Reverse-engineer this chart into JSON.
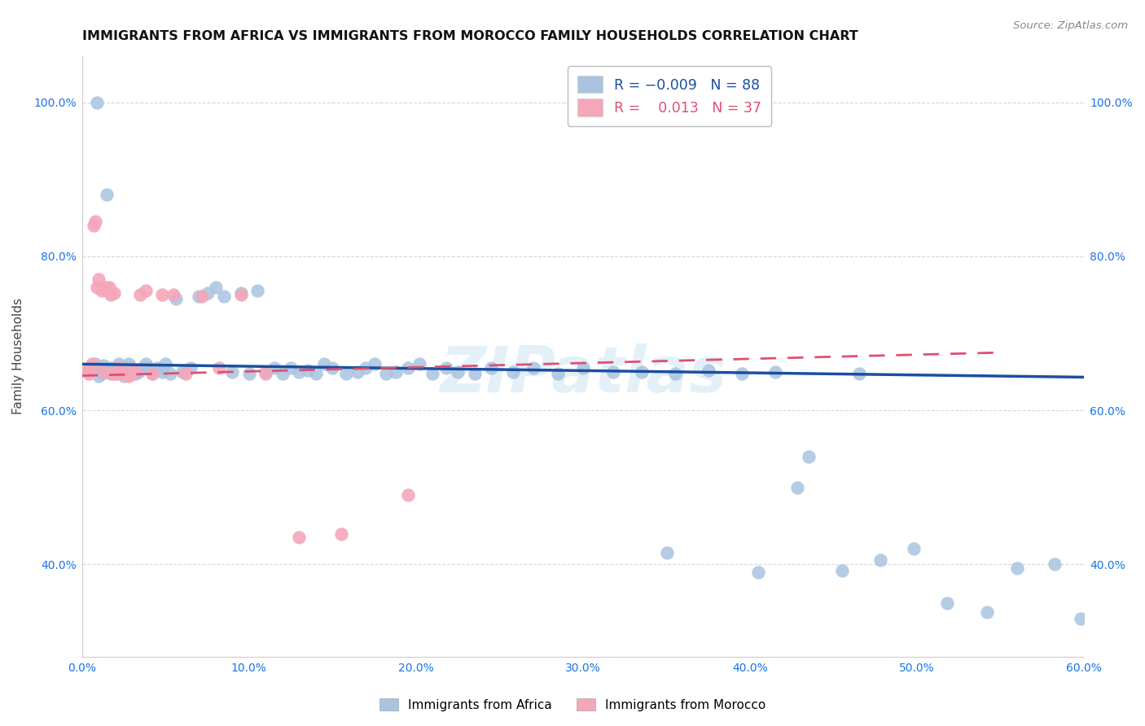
{
  "title": "IMMIGRANTS FROM AFRICA VS IMMIGRANTS FROM MOROCCO FAMILY HOUSEHOLDS CORRELATION CHART",
  "source": "Source: ZipAtlas.com",
  "ylabel": "Family Households",
  "xlim": [
    0.0,
    0.6
  ],
  "ylim": [
    0.28,
    1.06
  ],
  "xtick_labels": [
    "0.0%",
    "10.0%",
    "20.0%",
    "30.0%",
    "40.0%",
    "50.0%",
    "60.0%"
  ],
  "xtick_values": [
    0.0,
    0.1,
    0.2,
    0.3,
    0.4,
    0.5,
    0.6
  ],
  "ytick_labels": [
    "40.0%",
    "60.0%",
    "80.0%",
    "100.0%"
  ],
  "ytick_values": [
    0.4,
    0.6,
    0.8,
    1.0
  ],
  "blue_color": "#a8c4e0",
  "pink_color": "#f4a7b9",
  "trendline_blue_color": "#1a4fa0",
  "trendline_pink_color": "#e05070",
  "legend_r_blue": "-0.009",
  "legend_n_blue": "88",
  "legend_r_pink": "0.013",
  "legend_n_pink": "37",
  "watermark": "ZIPatlas",
  "blue_x": [
    0.006,
    0.008,
    0.009,
    0.01,
    0.011,
    0.012,
    0.013,
    0.014,
    0.015,
    0.016,
    0.017,
    0.018,
    0.019,
    0.02,
    0.021,
    0.022,
    0.023,
    0.024,
    0.025,
    0.026,
    0.028,
    0.03,
    0.032,
    0.034,
    0.036,
    0.038,
    0.04,
    0.042,
    0.045,
    0.048,
    0.05,
    0.053,
    0.056,
    0.06,
    0.065,
    0.07,
    0.075,
    0.08,
    0.085,
    0.09,
    0.095,
    0.1,
    0.105,
    0.11,
    0.115,
    0.12,
    0.125,
    0.13,
    0.135,
    0.14,
    0.145,
    0.15,
    0.158,
    0.165,
    0.17,
    0.175,
    0.182,
    0.188,
    0.195,
    0.202,
    0.21,
    0.218,
    0.225,
    0.235,
    0.245,
    0.258,
    0.27,
    0.285,
    0.3,
    0.318,
    0.335,
    0.355,
    0.375,
    0.395,
    0.415,
    0.435,
    0.455,
    0.478,
    0.498,
    0.518,
    0.542,
    0.56,
    0.582,
    0.598,
    0.35,
    0.405,
    0.428,
    0.465
  ],
  "blue_y": [
    0.655,
    0.66,
    1.0,
    0.645,
    0.655,
    0.648,
    0.658,
    0.65,
    0.88,
    0.655,
    0.648,
    0.655,
    0.65,
    0.648,
    0.655,
    0.66,
    0.648,
    0.65,
    0.645,
    0.655,
    0.66,
    0.655,
    0.648,
    0.65,
    0.655,
    0.66,
    0.655,
    0.648,
    0.655,
    0.65,
    0.66,
    0.648,
    0.745,
    0.65,
    0.655,
    0.748,
    0.752,
    0.76,
    0.748,
    0.65,
    0.752,
    0.648,
    0.755,
    0.65,
    0.655,
    0.648,
    0.655,
    0.65,
    0.652,
    0.648,
    0.66,
    0.655,
    0.648,
    0.65,
    0.655,
    0.66,
    0.648,
    0.65,
    0.655,
    0.66,
    0.648,
    0.655,
    0.65,
    0.648,
    0.655,
    0.65,
    0.655,
    0.648,
    0.655,
    0.65,
    0.65,
    0.648,
    0.652,
    0.648,
    0.65,
    0.54,
    0.392,
    0.406,
    0.42,
    0.35,
    0.338,
    0.395,
    0.4,
    0.33,
    0.415,
    0.39,
    0.5,
    0.648
  ],
  "pink_x": [
    0.003,
    0.004,
    0.005,
    0.006,
    0.007,
    0.008,
    0.009,
    0.01,
    0.011,
    0.012,
    0.013,
    0.014,
    0.015,
    0.016,
    0.017,
    0.018,
    0.019,
    0.02,
    0.022,
    0.024,
    0.026,
    0.028,
    0.03,
    0.032,
    0.035,
    0.038,
    0.042,
    0.048,
    0.055,
    0.062,
    0.072,
    0.082,
    0.095,
    0.11,
    0.13,
    0.155,
    0.195
  ],
  "pink_y": [
    0.652,
    0.648,
    0.655,
    0.66,
    0.84,
    0.845,
    0.76,
    0.77,
    0.76,
    0.755,
    0.65,
    0.76,
    0.755,
    0.76,
    0.75,
    0.648,
    0.752,
    0.648,
    0.655,
    0.648,
    0.65,
    0.645,
    0.648,
    0.652,
    0.75,
    0.755,
    0.648,
    0.75,
    0.75,
    0.648,
    0.748,
    0.655,
    0.75,
    0.648,
    0.435,
    0.44,
    0.49
  ],
  "blue_trend_x": [
    0.0,
    0.6
  ],
  "blue_trend_y": [
    0.66,
    0.643
  ],
  "pink_trend_x": [
    0.0,
    0.55
  ],
  "pink_trend_y": [
    0.645,
    0.675
  ]
}
